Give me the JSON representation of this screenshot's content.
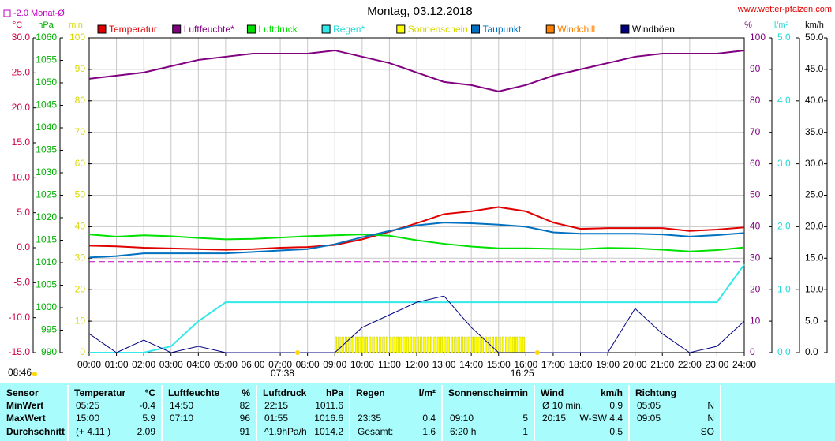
{
  "chart_data": {
    "type": "line",
    "title": "Montag, 03.12.2018",
    "source": "www.wetter-pfalzen.com",
    "reference": {
      "label": "-2.0 Monat-Ø",
      "value": -2.0,
      "axis": 0,
      "color": "#c000c0"
    },
    "annotations": [
      {
        "text": "08:46"
      },
      {
        "text": "07:38",
        "x": 7.6333
      },
      {
        "text": "16:25",
        "x": 16.4167
      }
    ],
    "grid": true,
    "xlim": [
      0,
      24
    ],
    "xticks": [
      {
        "value": 0,
        "label": "00:00"
      },
      {
        "value": 1,
        "label": "01:00"
      },
      {
        "value": 2,
        "label": "02:00"
      },
      {
        "value": 3,
        "label": "03:00"
      },
      {
        "value": 4,
        "label": "04:00"
      },
      {
        "value": 5,
        "label": "05:00"
      },
      {
        "value": 6,
        "label": "06:00"
      },
      {
        "value": 7,
        "label": "07:00"
      },
      {
        "value": 8,
        "label": "08:00"
      },
      {
        "value": 9,
        "label": "09:00"
      },
      {
        "value": 10,
        "label": "10:00"
      },
      {
        "value": 11,
        "label": "11:00"
      },
      {
        "value": 12,
        "label": "12:00"
      },
      {
        "value": 13,
        "label": "13:00"
      },
      {
        "value": 14,
        "label": "14:00"
      },
      {
        "value": 15,
        "label": "15:00"
      },
      {
        "value": 16,
        "label": "16:00"
      },
      {
        "value": 17,
        "label": "17:00"
      },
      {
        "value": 18,
        "label": "18:00"
      },
      {
        "value": 19,
        "label": "19:00"
      },
      {
        "value": 20,
        "label": "20:00"
      },
      {
        "value": 21,
        "label": "21:00"
      },
      {
        "value": 22,
        "label": "22:00"
      },
      {
        "value": 23,
        "label": "23:00"
      },
      {
        "value": 24,
        "label": "24:00"
      }
    ],
    "y_axes": [
      {
        "label": "°C",
        "color": "#d0004a",
        "side": "left",
        "ylim": [
          -15,
          30
        ],
        "yticks": [
          {
            "value": 30,
            "label": "30.0"
          },
          {
            "value": 25,
            "label": "25.0"
          },
          {
            "value": 20,
            "label": "20.0"
          },
          {
            "value": 15,
            "label": "15.0"
          },
          {
            "value": 10,
            "label": "10.0"
          },
          {
            "value": 5,
            "label": "5.0"
          },
          {
            "value": 0,
            "label": "0.0"
          },
          {
            "value": -5,
            "label": "-5.0"
          },
          {
            "value": -10,
            "label": "-10.0"
          },
          {
            "value": -15,
            "label": "-15.0"
          }
        ]
      },
      {
        "label": "hPa",
        "color": "#00b000",
        "side": "left",
        "ylim": [
          990,
          1060
        ],
        "yticks": [
          1060,
          1055,
          1050,
          1045,
          1040,
          1035,
          1030,
          1025,
          1020,
          1015,
          1010,
          1005,
          1000,
          995,
          990
        ]
      },
      {
        "label": "min",
        "color": "#d8d800",
        "side": "left",
        "ylim": [
          0,
          100
        ],
        "yticks": [
          100,
          90,
          80,
          70,
          60,
          50,
          40,
          30,
          20,
          10,
          0
        ],
        "grid": true
      },
      {
        "label": "%",
        "color": "#800080",
        "side": "right",
        "ylim": [
          0,
          100
        ],
        "yticks": [
          100,
          90,
          80,
          70,
          60,
          50,
          40,
          30,
          20,
          10,
          0
        ]
      },
      {
        "label": "l/m²",
        "color": "#20d8d8",
        "side": "right",
        "ylim": [
          0,
          5
        ],
        "yticks": [
          {
            "value": 5,
            "label": "5.0"
          },
          {
            "value": 4,
            "label": "4.0"
          },
          {
            "value": 3,
            "label": "3.0"
          },
          {
            "value": 2,
            "label": "2.0"
          },
          {
            "value": 1,
            "label": "1.0"
          },
          {
            "value": 0,
            "label": "0.0"
          }
        ]
      },
      {
        "label": "km/h",
        "color": "#000000",
        "side": "right",
        "ylim": [
          0,
          50
        ],
        "yticks": [
          {
            "value": 50,
            "label": "50.0"
          },
          {
            "value": 45,
            "label": "45.0"
          },
          {
            "value": 40,
            "label": "40.0"
          },
          {
            "value": 35,
            "label": "35.0"
          },
          {
            "value": 30,
            "label": "30.0"
          },
          {
            "value": 25,
            "label": "25.0"
          },
          {
            "value": 20,
            "label": "20.0"
          },
          {
            "value": 15,
            "label": "15.0"
          },
          {
            "value": 10,
            "label": "10.0"
          },
          {
            "value": 5,
            "label": "5.0"
          },
          {
            "value": 0,
            "label": "0.0"
          }
        ]
      }
    ],
    "x": [
      0,
      1,
      2,
      3,
      4,
      5,
      6,
      7,
      8,
      9,
      10,
      11,
      12,
      13,
      14,
      15,
      16,
      17,
      18,
      19,
      20,
      21,
      22,
      23,
      24
    ],
    "series": [
      {
        "name": "Temperatur",
        "color": "#e00000",
        "axis": 0,
        "values": [
          0.3,
          0.2,
          0.0,
          -0.1,
          -0.2,
          -0.3,
          -0.2,
          0.0,
          0.1,
          0.4,
          1.2,
          2.3,
          3.5,
          4.8,
          5.2,
          5.8,
          5.2,
          3.6,
          2.7,
          2.8,
          2.8,
          2.8,
          2.4,
          2.6,
          2.9
        ]
      },
      {
        "name": "Luftfeuchte*",
        "color": "#800080",
        "axis": 3,
        "values": [
          87,
          88,
          89,
          91,
          93,
          94,
          95,
          95,
          95,
          96,
          94,
          92,
          89,
          86,
          85,
          83,
          85,
          88,
          90,
          92,
          94,
          95,
          95,
          95,
          96
        ]
      },
      {
        "name": "Luftdruck",
        "color": "#00e000",
        "axis": 1,
        "values": [
          1016.3,
          1015.8,
          1016.1,
          1015.9,
          1015.5,
          1015.2,
          1015.3,
          1015.6,
          1015.9,
          1016.1,
          1016.3,
          1016.0,
          1015.0,
          1014.2,
          1013.6,
          1013.2,
          1013.2,
          1013.1,
          1013.0,
          1013.3,
          1013.2,
          1012.9,
          1012.5,
          1012.8,
          1013.4
        ]
      },
      {
        "name": "Regen*",
        "color": "#33e8e8",
        "axis": 4,
        "values": [
          0,
          0,
          0,
          0.1,
          0.5,
          0.8,
          0.8,
          0.8,
          0.8,
          0.8,
          0.8,
          0.8,
          0.8,
          0.8,
          0.8,
          0.8,
          0.8,
          0.8,
          0.8,
          0.8,
          0.8,
          0.8,
          0.8,
          0.8,
          1.4
        ]
      },
      {
        "name": "Sonnenschein",
        "color": "#ffff00",
        "axis": 2,
        "bars": true,
        "values": [
          null,
          null,
          null,
          null,
          null,
          null,
          null,
          null,
          null,
          5,
          5,
          5,
          5,
          5,
          5,
          5,
          null,
          null,
          null,
          null,
          null,
          null,
          null,
          null,
          null
        ]
      },
      {
        "name": "Taupunkt",
        "color": "#0070c0",
        "axis": 0,
        "values": [
          -1.4,
          -1.2,
          -0.8,
          -0.8,
          -0.8,
          -0.8,
          -0.6,
          -0.4,
          -0.2,
          0.5,
          1.5,
          2.4,
          3.2,
          3.6,
          3.5,
          3.3,
          3.0,
          2.2,
          2.0,
          2.0,
          2.0,
          1.9,
          1.6,
          1.8,
          2.1
        ]
      },
      {
        "name": "Windchill",
        "color": "#ff8000",
        "axis": 0,
        "values": [
          null,
          null,
          null,
          null,
          null,
          null,
          null,
          null,
          null,
          null,
          null,
          null,
          null,
          null,
          null,
          null,
          null,
          null,
          null,
          null,
          null,
          null,
          null,
          null,
          null
        ]
      },
      {
        "name": "Windböen",
        "color": "#000080",
        "axis": 5,
        "values": [
          3,
          0,
          2,
          0,
          1,
          0,
          0,
          0,
          0,
          0,
          4,
          6,
          8,
          9,
          4,
          0,
          0,
          0,
          0,
          0,
          7,
          3,
          0,
          1,
          5
        ]
      }
    ]
  },
  "table": {
    "header": [
      [
        "Sensor"
      ],
      [
        "Temperatur",
        "°C"
      ],
      [
        "Luftfeuchte",
        "%"
      ],
      [
        "Luftdruck",
        "hPa"
      ],
      [
        "Regen",
        "l/m²"
      ],
      [
        "Sonnenschein",
        "min"
      ],
      [
        "Wind",
        "km/h"
      ],
      [
        "Richtung"
      ]
    ],
    "rows": [
      {
        "label": "MinWert",
        "cells": [
          [
            "05:25",
            "-0.4"
          ],
          [
            "14:50",
            "82"
          ],
          [
            "22:15",
            "1011.6"
          ],
          [
            null,
            null
          ],
          [
            null,
            null
          ],
          [
            "Ø 10 min.",
            "0.9"
          ],
          [
            "05:05",
            "N"
          ]
        ]
      },
      {
        "label": "MaxWert",
        "cells": [
          [
            "15:00",
            "5.9"
          ],
          [
            "07:10",
            "96"
          ],
          [
            "01:55",
            "1016.6"
          ],
          [
            "23:35",
            "0.4"
          ],
          [
            "09:10",
            "5"
          ],
          [
            "20:15",
            "W-SW 4.4"
          ],
          [
            "09:05",
            "N"
          ]
        ]
      },
      {
        "label": "Durchschnitt",
        "cells": [
          [
            "(+ 4.11 )",
            "2.09"
          ],
          [
            null,
            "91"
          ],
          [
            "^1.9hPa/h",
            "1014.2"
          ],
          [
            "Gesamt:",
            "1.6"
          ],
          [
            "6:20 h",
            "1"
          ],
          [
            null,
            "0.5"
          ],
          [
            null,
            "SO"
          ]
        ]
      }
    ]
  }
}
